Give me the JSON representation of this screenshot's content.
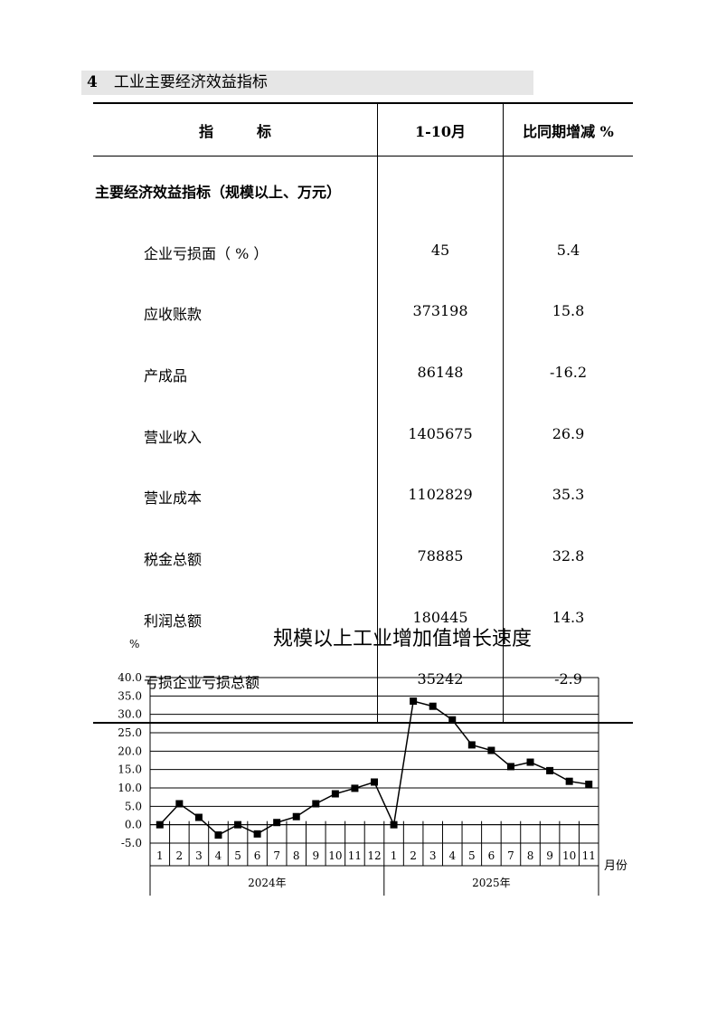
{
  "section": {
    "number": "4",
    "title": "工业主要经济效益指标"
  },
  "table": {
    "headers": [
      "指　　　标",
      "1-10月",
      "比同期增减  %"
    ],
    "group": "主要经济效益指标（规模以上、万元）",
    "rows": [
      {
        "name": "企业亏损面（ % ）",
        "value": "45",
        "change": "5.4"
      },
      {
        "name": "应收账款",
        "value": "373198",
        "change": "15.8"
      },
      {
        "name": "产成品",
        "value": "86148",
        "change": "-16.2"
      },
      {
        "name": "营业收入",
        "value": "1405675",
        "change": "26.9"
      },
      {
        "name": "营业成本",
        "value": "1102829",
        "change": "35.3"
      },
      {
        "name": "税金总额",
        "value": "78885",
        "change": "32.8"
      },
      {
        "name": "利润总额",
        "value": "180445",
        "change": "14.3"
      },
      {
        "name": "亏损企业亏损总额",
        "value": "35242",
        "change": "-2.9"
      }
    ]
  },
  "chart_data": {
    "type": "line",
    "title": "规模以上工业增加值增长速度",
    "ylabel": "%",
    "xlabel": "月份",
    "ylim": [
      -5,
      40
    ],
    "yticks": [
      "-5.0",
      "0.0",
      "5.0",
      "10.0",
      "15.0",
      "20.0",
      "25.0",
      "30.0",
      "35.0",
      "40.0"
    ],
    "grid": true,
    "groups": [
      {
        "label": "2024年",
        "months": [
          "1",
          "2",
          "3",
          "4",
          "5",
          "6",
          "7",
          "8",
          "9",
          "10",
          "11",
          "12"
        ]
      },
      {
        "label": "2025年",
        "months": [
          "1",
          "2",
          "3",
          "4",
          "5",
          "6",
          "7",
          "8",
          "9",
          "10",
          "11"
        ]
      }
    ],
    "values": [
      0,
      5.7,
      2.0,
      -2.8,
      0,
      -2.5,
      0.6,
      2.2,
      5.7,
      8.4,
      9.9,
      11.6,
      0,
      33.6,
      32.2,
      28.5,
      21.7,
      20.2,
      15.8,
      17.0,
      14.7,
      11.8,
      11.0
    ],
    "marker": "square",
    "color": "#000000"
  }
}
